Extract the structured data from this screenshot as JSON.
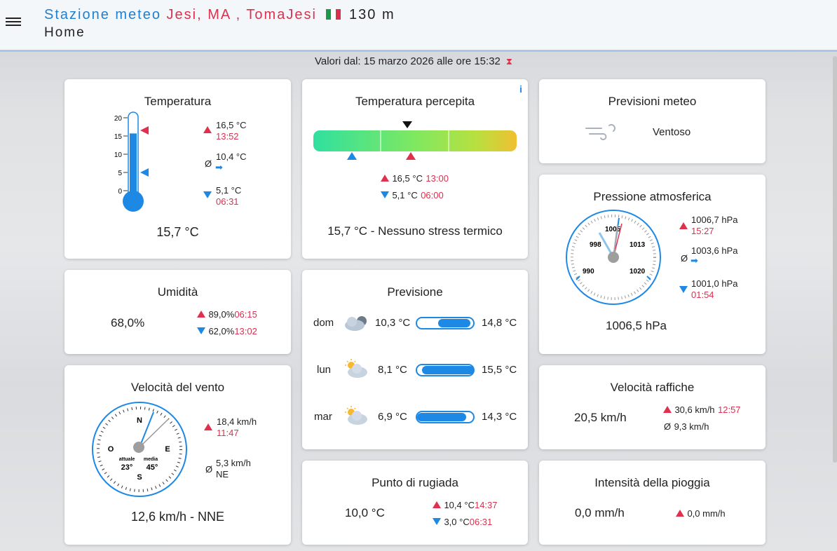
{
  "header": {
    "station_prefix": "Stazione meteo",
    "location": "Jesi, MA , TomaJesi",
    "altitude": "130 m",
    "page": "Home"
  },
  "updated": "Valori dal: 15 marzo 2026 alle ore 15:32",
  "temperature": {
    "title": "Temperatura",
    "ticks": [
      "20",
      "15",
      "10",
      "5",
      "0"
    ],
    "max": "16,5 °C",
    "max_time": "13:52",
    "avg": "10,4 °C",
    "min": "5,1 °C",
    "min_time": "06:31",
    "current": "15,7 °C",
    "fill_value": 15.7
  },
  "perceived": {
    "title": "Temperatura percepita",
    "info": "i",
    "max": "16,5 °C",
    "max_time": "13:00",
    "min": "5,1 °C",
    "min_time": "06:00",
    "status": "15,7 °C - Nessuno stress termico"
  },
  "forecast_now": {
    "title": "Previsioni meteo",
    "condition": "Ventoso"
  },
  "humidity": {
    "title": "Umidità",
    "current": "68,0%",
    "max": "89,0%",
    "max_time": "06:15",
    "min": "62,0%",
    "min_time": "13:02"
  },
  "forecast": {
    "title": "Previsione",
    "days": [
      {
        "day": "dom",
        "min": "10,3 °C",
        "max": "14,8 °C"
      },
      {
        "day": "lun",
        "min": "8,1 °C",
        "max": "15,5 °C"
      },
      {
        "day": "mar",
        "min": "6,9 °C",
        "max": "14,3 °C"
      }
    ]
  },
  "pressure": {
    "title": "Pressione atmosferica",
    "dial_labels": [
      "998",
      "1005",
      "1013",
      "990",
      "1020"
    ],
    "max": "1006,7 hPa",
    "max_time": "15:27",
    "avg": "1003,6 hPa",
    "min": "1001,0 hPa",
    "min_time": "01:54",
    "current": "1006,5 hPa"
  },
  "wind": {
    "title": "Velocità del vento",
    "compass": {
      "n": "N",
      "e": "E",
      "s": "S",
      "w": "O"
    },
    "actual_label": "attuale",
    "actual": "23°",
    "avg_label": "media",
    "avg_dir": "45°",
    "max": "18,4 km/h",
    "max_time": "11:47",
    "avg": "5,3 km/h",
    "avg_heading": "NE",
    "current": "12,6 km/h - NNE"
  },
  "dewpoint": {
    "title": "Punto di rugiada",
    "current": "10,0 °C",
    "max": "10,4 °C",
    "max_time": "14:37",
    "min": "3,0 °C",
    "min_time": "06:31"
  },
  "gusts": {
    "title": "Velocità raffiche",
    "current": "20,5 km/h",
    "max": "30,6 km/h",
    "max_time": "12:57",
    "avg": "9,3 km/h"
  },
  "rain": {
    "title": "Intensità della pioggia",
    "current": "0,0 mm/h",
    "max": "0,0 mm/h"
  },
  "colors": {
    "accent": "#1e88e5",
    "alert": "#e0304e",
    "title_blue": "#1f7fd0"
  }
}
